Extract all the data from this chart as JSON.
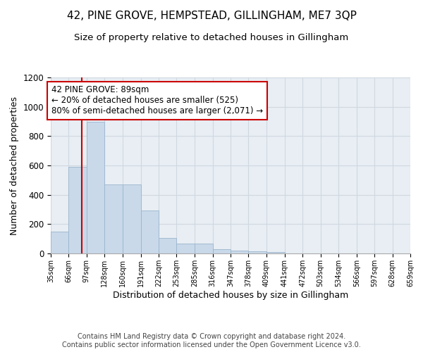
{
  "title": "42, PINE GROVE, HEMPSTEAD, GILLINGHAM, ME7 3QP",
  "subtitle": "Size of property relative to detached houses in Gillingham",
  "xlabel": "Distribution of detached houses by size in Gillingham",
  "ylabel": "Number of detached properties",
  "footer": "Contains HM Land Registry data © Crown copyright and database right 2024.\nContains public sector information licensed under the Open Government Licence v3.0.",
  "bin_edges": [
    35,
    66,
    97,
    128,
    160,
    191,
    222,
    253,
    285,
    316,
    347,
    378,
    409,
    441,
    472,
    503,
    534,
    566,
    597,
    628,
    659
  ],
  "bar_heights": [
    150,
    590,
    900,
    470,
    470,
    295,
    105,
    65,
    65,
    28,
    20,
    15,
    10,
    0,
    0,
    0,
    0,
    0,
    0,
    0
  ],
  "bar_facecolor": "#c9d9ea",
  "bar_edgecolor": "#9ab5cc",
  "grid_color": "#d0d8e0",
  "background_color": "#e8eef4",
  "property_size": 89,
  "vline_color": "#cc0000",
  "annotation_text": "42 PINE GROVE: 89sqm\n← 20% of detached houses are smaller (525)\n80% of semi-detached houses are larger (2,071) →",
  "annotation_box_color": "#cc0000",
  "ylim": [
    0,
    1200
  ],
  "yticks": [
    0,
    200,
    400,
    600,
    800,
    1000,
    1200
  ],
  "title_fontsize": 11,
  "subtitle_fontsize": 9.5,
  "xlabel_fontsize": 9,
  "ylabel_fontsize": 9,
  "annotation_fontsize": 8.5,
  "footer_fontsize": 7
}
